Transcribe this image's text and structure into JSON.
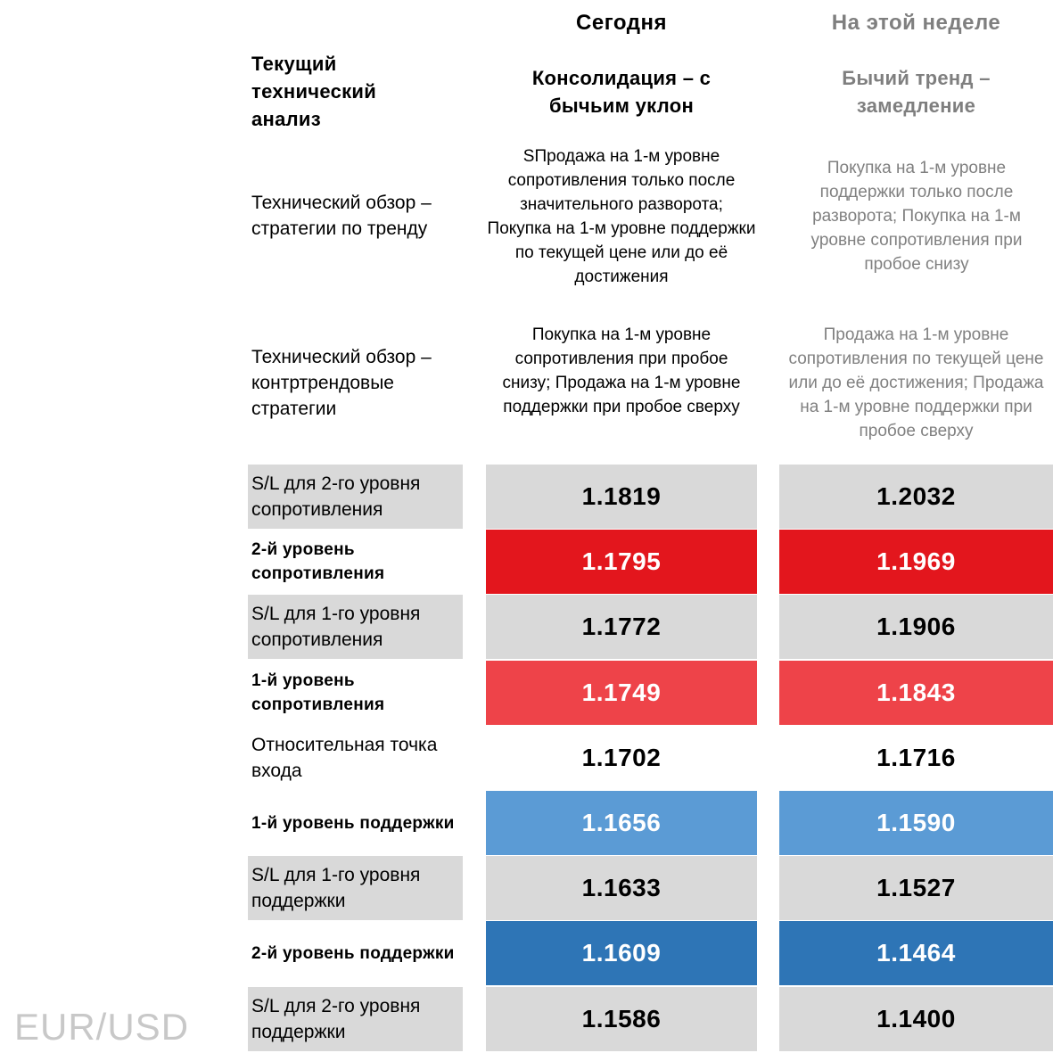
{
  "header": {
    "title": "Текущий технический анализ",
    "today": "Сегодня",
    "week": "На этой неделе",
    "today_trend": "Консолидация – с бычьим уклон",
    "week_trend": "Бычий тренд – замедление"
  },
  "trend_strategy": {
    "label": "Технический обзор – стратегии по тренду",
    "today": "SПродажа на 1-м уровне сопротивления только после значительного разворота; Покупка на 1-м уровне поддержки по текущей цене или до её достижения",
    "week": "Покупка на 1-м уровне поддержки только после разворота; Покупка на 1-м уровне сопротивления при пробое снизу"
  },
  "counter_strategy": {
    "label": "Технический обзор – контртрендовые стратегии",
    "today": "Покупка на 1-м уровне сопротивления при пробое снизу; Продажа на 1-м уровне поддержки при пробое сверху",
    "week": "Продажа на 1-м уровне сопротивления по текущей цене или до её достижения; Продажа на 1-м уровне поддержки при пробое сверху"
  },
  "colors": {
    "grey": "#d9d9d9",
    "white": "#ffffff",
    "red_dark": "#e3161d",
    "red_light": "#ee4349",
    "blue_light": "#5b9bd5",
    "blue_dark": "#2e75b6"
  },
  "levels": [
    {
      "label": "S/L для 2-го уровня сопротивления",
      "today": "1.1819",
      "week": "1.2032",
      "style": "grey",
      "bold": false
    },
    {
      "label": "2-й уровень сопротивления",
      "today": "1.1795",
      "week": "1.1969",
      "style": "red_dark",
      "bold": true
    },
    {
      "label": "S/L для 1-го уровня сопротивления",
      "today": "1.1772",
      "week": "1.1906",
      "style": "grey",
      "bold": false
    },
    {
      "label": "1-й уровень сопротивления",
      "today": "1.1749",
      "week": "1.1843",
      "style": "red_light",
      "bold": true
    },
    {
      "label": "Относительная точка входа",
      "today": "1.1702",
      "week": "1.1716",
      "style": "white",
      "bold": false
    },
    {
      "label": "1-й уровень поддержки",
      "today": "1.1656",
      "week": "1.1590",
      "style": "blue_light",
      "bold": true
    },
    {
      "label": "S/L для 1-го уровня поддержки",
      "today": "1.1633",
      "week": "1.1527",
      "style": "grey",
      "bold": false
    },
    {
      "label": "2-й уровень поддержки",
      "today": "1.1609",
      "week": "1.1464",
      "style": "blue_dark",
      "bold": true
    },
    {
      "label": "S/L для 2-го уровня поддержки",
      "today": "1.1586",
      "week": "1.1400",
      "style": "grey",
      "bold": false
    }
  ],
  "watermark": "EUR/USD"
}
